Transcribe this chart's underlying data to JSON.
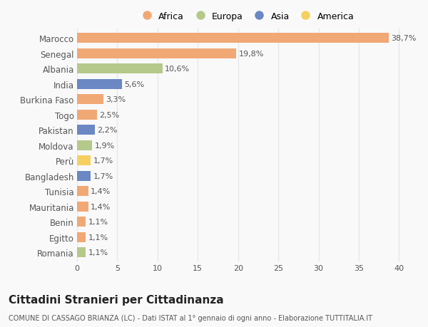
{
  "countries": [
    "Marocco",
    "Senegal",
    "Albania",
    "India",
    "Burkina Faso",
    "Togo",
    "Pakistan",
    "Moldova",
    "Perù",
    "Bangladesh",
    "Tunisia",
    "Mauritania",
    "Benin",
    "Egitto",
    "Romania"
  ],
  "values": [
    38.7,
    19.8,
    10.6,
    5.6,
    3.3,
    2.5,
    2.2,
    1.9,
    1.7,
    1.7,
    1.4,
    1.4,
    1.1,
    1.1,
    1.1
  ],
  "labels": [
    "38,7%",
    "19,8%",
    "10,6%",
    "5,6%",
    "3,3%",
    "2,5%",
    "2,2%",
    "1,9%",
    "1,7%",
    "1,7%",
    "1,4%",
    "1,4%",
    "1,1%",
    "1,1%",
    "1,1%"
  ],
  "continents": [
    "Africa",
    "Africa",
    "Europa",
    "Asia",
    "Africa",
    "Africa",
    "Asia",
    "Europa",
    "America",
    "Asia",
    "Africa",
    "Africa",
    "Africa",
    "Africa",
    "Europa"
  ],
  "colors": {
    "Africa": "#F0A875",
    "Europa": "#B5C98A",
    "Asia": "#6B88C4",
    "America": "#F5D060"
  },
  "legend_order": [
    "Africa",
    "Europa",
    "Asia",
    "America"
  ],
  "xlim": [
    0,
    42
  ],
  "xticks": [
    0,
    5,
    10,
    15,
    20,
    25,
    30,
    35,
    40
  ],
  "title": "Cittadini Stranieri per Cittadinanza",
  "subtitle": "COMUNE DI CASSAGO BRIANZA (LC) - Dati ISTAT al 1° gennaio di ogni anno - Elaborazione TUTTITALIA.IT",
  "background_color": "#f9f9f9",
  "bar_height": 0.65,
  "grid_color": "#e8e8e8",
  "label_fontsize": 8,
  "ytick_fontsize": 8.5,
  "xtick_fontsize": 8,
  "title_fontsize": 11,
  "subtitle_fontsize": 7
}
